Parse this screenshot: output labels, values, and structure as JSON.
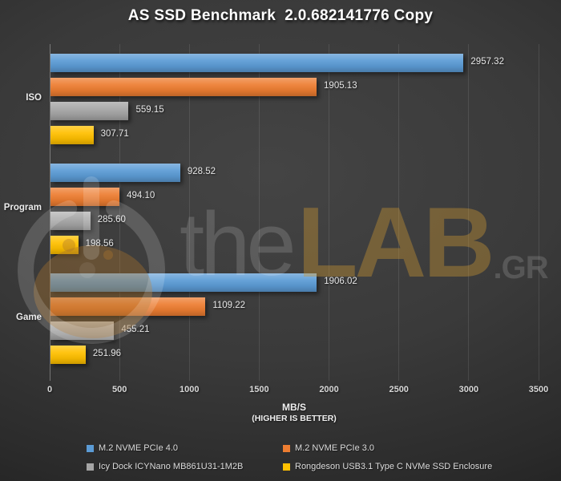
{
  "title": "AS SSD Benchmark  2.0.682141776 Copy",
  "chart_data": {
    "type": "bar",
    "orientation": "horizontal",
    "title": "AS SSD Benchmark  2.0.682141776 Copy",
    "categories": [
      "ISO",
      "Program",
      "Game"
    ],
    "series": [
      {
        "name": "M.2 NVME PCIe 4.0",
        "color": "#5B9BD5",
        "values": [
          2957.32,
          928.52,
          1906.02
        ]
      },
      {
        "name": "M.2 NVME PCIe 3.0",
        "color": "#ED7D31",
        "values": [
          1905.13,
          494.1,
          1109.22
        ]
      },
      {
        "name": "Icy Dock ICYNano MB861U31-1M2B",
        "color": "#A5A5A5",
        "values": [
          559.15,
          285.6,
          455.21
        ]
      },
      {
        "name": "Rongdeson USB3.1 Type C NVMe SSD Enclosure",
        "color": "#FFC000",
        "values": [
          307.71,
          198.56,
          251.96
        ]
      }
    ],
    "xlabel": "MB/S",
    "xlabel_note": "(HIGHER IS BETTER)",
    "xlim": [
      0,
      3500
    ],
    "xticks": [
      0,
      500,
      1000,
      1500,
      2000,
      2500,
      3000,
      3500
    ],
    "grid": true,
    "legend_position": "bottom",
    "value_decimals": 2
  },
  "watermark": {
    "logo": "thelab-power-flask-logo",
    "text_prefix": "the",
    "text_brand": "LAB",
    "text_suffix": ".GR",
    "brand_color": "#CB9533"
  },
  "colors": {
    "background_center": "#444444",
    "background_edge": "#1f1f1f",
    "gridline": "rgba(255,255,255,0.10)",
    "text": "#ececec"
  }
}
